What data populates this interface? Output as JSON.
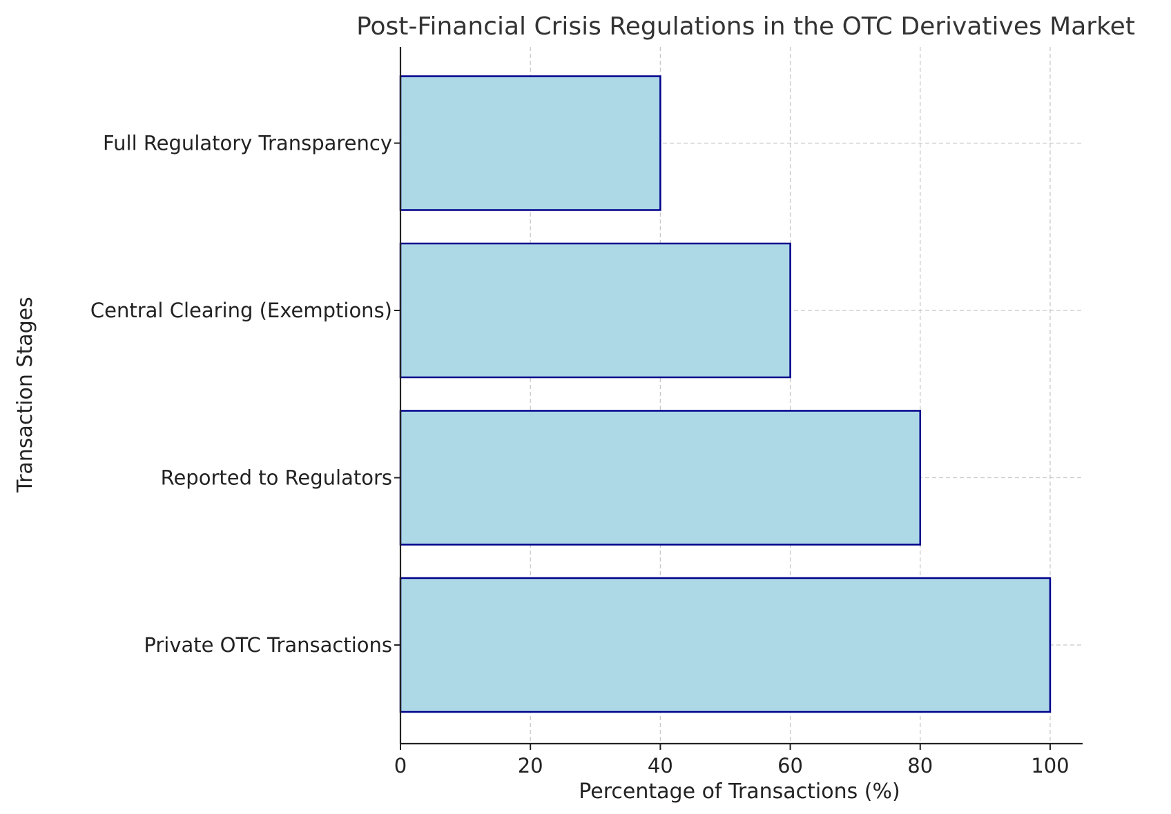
{
  "chart_data": {
    "type": "bar",
    "orientation": "horizontal",
    "title": "Post-Financial Crisis Regulations in the OTC Derivatives Market",
    "xlabel": "Percentage of Transactions (%)",
    "ylabel": "Transaction Stages",
    "categories": [
      "Private OTC Transactions",
      "Reported to Regulators",
      "Central Clearing (Exemptions)",
      "Full Regulatory Transparency"
    ],
    "values": [
      100,
      80,
      60,
      40
    ],
    "xlim": [
      0,
      105
    ],
    "xticks": [
      0,
      20,
      40,
      60,
      80,
      100
    ],
    "xtick_labels": [
      "0",
      "20",
      "40",
      "60",
      "80",
      "100"
    ],
    "grid": true,
    "legend": "none",
    "colors": {
      "bar_fill": "#add8e6",
      "bar_edge": "#00008b",
      "grid": "#c8c8c8",
      "axis": "#222222",
      "text": "#333333"
    }
  }
}
